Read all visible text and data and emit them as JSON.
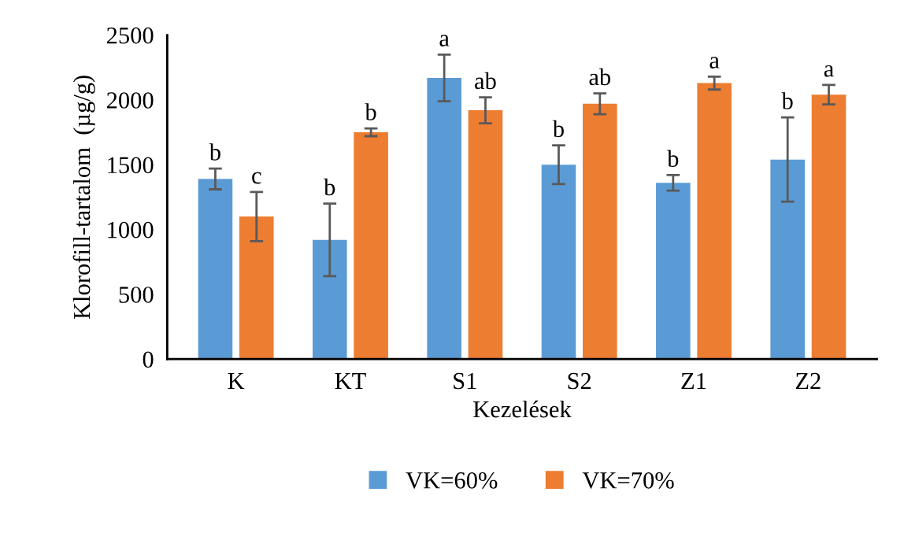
{
  "chart_data": {
    "type": "bar",
    "xlabel": "Kezelések",
    "ylabel": "Klorofill-tartalom  (µg/g)",
    "categories": [
      "K",
      "KT",
      "S1",
      "S2",
      "Z1",
      "Z2"
    ],
    "series": [
      {
        "name": "VK=60%",
        "color": "#5b9bd5",
        "values": [
          1390,
          920,
          2170,
          1500,
          1360,
          1540
        ],
        "errors": [
          80,
          280,
          180,
          150,
          60,
          325
        ]
      },
      {
        "name": "VK=70%",
        "color": "#ed7d31",
        "values": [
          1100,
          1750,
          1920,
          1970,
          2130,
          2040
        ],
        "errors": [
          190,
          30,
          100,
          80,
          50,
          75
        ]
      }
    ],
    "annotations": [
      "b",
      "c",
      "b",
      "b",
      "a",
      "ab",
      "b",
      "ab",
      "b",
      "a",
      "b",
      "a"
    ],
    "ylim": [
      0,
      2500
    ],
    "yticks": [
      0,
      500,
      1000,
      1500,
      2000,
      2500
    ],
    "grid": false,
    "legend": "bottom"
  }
}
